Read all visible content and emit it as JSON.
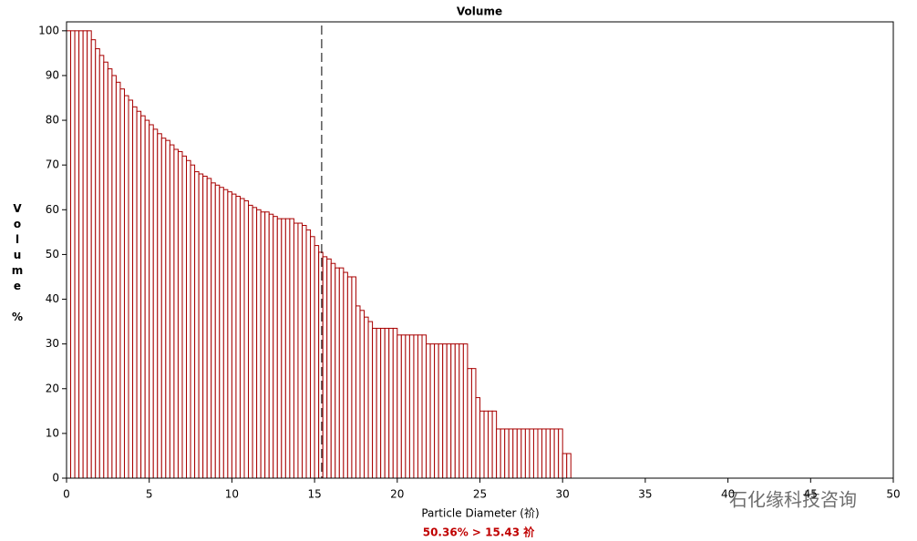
{
  "chart_data": {
    "type": "histogram",
    "title": "Volume",
    "xlabel": "Particle Diameter (祄)",
    "ylabel": "Volume %",
    "annotation": "50.36% > 15.43 祄",
    "watermark": "石化缘科技咨询",
    "vline": 15.43,
    "color": "#a80000",
    "xlim": [
      0,
      50
    ],
    "ylim": [
      0,
      102
    ],
    "xticks": [
      0,
      5,
      10,
      15,
      20,
      25,
      30,
      35,
      40,
      45,
      50
    ],
    "yticks": [
      0,
      10,
      20,
      30,
      40,
      50,
      60,
      70,
      80,
      90,
      100
    ],
    "bins": [
      0,
      0.25,
      0.5,
      0.75,
      1,
      1.25,
      1.5,
      1.75,
      2,
      2.25,
      2.5,
      2.75,
      3,
      3.25,
      3.5,
      3.75,
      4,
      4.25,
      4.5,
      4.75,
      5,
      5.25,
      5.5,
      5.75,
      6,
      6.25,
      6.5,
      6.75,
      7,
      7.25,
      7.5,
      7.75,
      8,
      8.25,
      8.5,
      8.75,
      9,
      9.25,
      9.5,
      9.75,
      10,
      10.25,
      10.5,
      10.75,
      11,
      11.25,
      11.5,
      11.75,
      12,
      12.25,
      12.5,
      12.75,
      13,
      13.25,
      13.5,
      13.75,
      14,
      14.25,
      14.5,
      14.75,
      15,
      15.25,
      15.5,
      15.75,
      16,
      16.25,
      16.5,
      16.75,
      17,
      17.25,
      17.5,
      17.75,
      18,
      18.25,
      18.5,
      18.75,
      19,
      19.25,
      19.5,
      19.75,
      20,
      20.25,
      20.5,
      20.75,
      21,
      21.25,
      21.5,
      21.75,
      22,
      22.25,
      22.5,
      22.75,
      23,
      23.25,
      23.5,
      23.75,
      24,
      24.25,
      24.5,
      24.75,
      25,
      25.25,
      25.5,
      25.75,
      26,
      26.25,
      26.5,
      26.75,
      27,
      27.25,
      27.5,
      27.75,
      28,
      28.25,
      28.5,
      28.75,
      29,
      29.25,
      29.5,
      29.75,
      30,
      30.25,
      30.5
    ],
    "values": [
      100,
      100,
      100,
      100,
      100,
      100,
      98,
      96,
      94.5,
      93,
      91.5,
      90,
      88.5,
      87,
      85.5,
      84.5,
      83,
      82,
      81,
      80,
      79,
      78,
      77,
      76,
      75.5,
      74.5,
      73.5,
      73,
      72,
      71,
      70,
      68.5,
      68,
      67.5,
      67,
      66,
      65.5,
      65,
      64.5,
      64,
      63.5,
      63,
      62.5,
      62,
      61,
      60.5,
      60,
      59.5,
      59.5,
      59,
      58.5,
      58,
      58,
      58,
      58,
      57,
      57,
      56.5,
      55.5,
      54,
      52,
      50.5,
      49.5,
      49,
      48,
      47,
      47,
      46,
      45,
      45,
      38.5,
      37.5,
      36,
      35,
      33.5,
      33.5,
      33.5,
      33.5,
      33.5,
      33.5,
      32,
      32,
      32,
      32,
      32,
      32,
      32,
      30,
      30,
      30,
      30,
      30,
      30,
      30,
      30,
      30,
      30,
      24.5,
      24.5,
      18,
      15,
      15,
      15,
      15,
      11,
      11,
      11,
      11,
      11,
      11,
      11,
      11,
      11,
      11,
      11,
      11,
      11,
      11,
      11,
      11,
      5.5,
      5.5
    ]
  }
}
